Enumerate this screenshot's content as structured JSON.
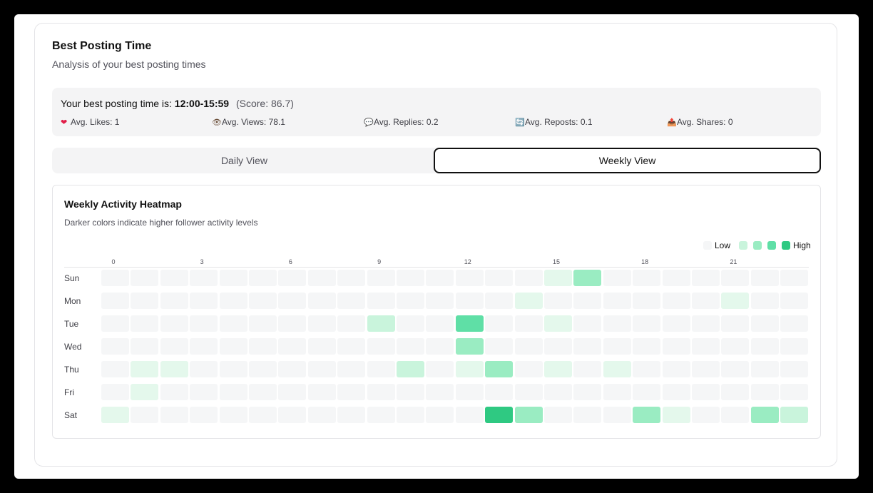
{
  "header": {
    "title": "Best Posting Time",
    "subtitle": "Analysis of your best posting times"
  },
  "best": {
    "prefix": "Your best posting time is:",
    "time": "12:00-15:59",
    "score": "(Score: 86.7)",
    "stats": [
      {
        "icon": "heart-icon",
        "glyph": "❤",
        "color": "#e11d48",
        "label": "Avg. Likes: 1"
      },
      {
        "icon": "eye-icon",
        "glyph": "👁",
        "color": "#6b4f3a",
        "label": "Avg. Views: 78.1"
      },
      {
        "icon": "speech-bubble-icon",
        "glyph": "💬",
        "color": "#94a3b8",
        "label": "Avg. Replies: 0.2"
      },
      {
        "icon": "repost-icon",
        "glyph": "🔄",
        "color": "#2563eb",
        "label": "Avg. Reposts: 0.1"
      },
      {
        "icon": "share-icon",
        "glyph": "📤",
        "color": "#dc2626",
        "label": "Avg. Shares: 0"
      }
    ]
  },
  "tabs": {
    "daily": "Daily View",
    "weekly": "Weekly View",
    "active": "weekly"
  },
  "heatmap": {
    "title": "Weekly Activity Heatmap",
    "subtitle": "Darker colors indicate higher follower activity levels",
    "legend": {
      "low": "Low",
      "high": "High"
    },
    "colors": [
      "#f5f6f7",
      "#e4f8ec",
      "#c9f4dc",
      "#9aecc2",
      "#5fdfa6",
      "#2fc982"
    ],
    "hour_ticks": [
      "0",
      "3",
      "6",
      "9",
      "12",
      "15",
      "18",
      "21"
    ],
    "days": [
      "Sun",
      "Mon",
      "Tue",
      "Wed",
      "Thu",
      "Fri",
      "Sat"
    ],
    "levels": [
      [
        0,
        0,
        0,
        0,
        0,
        0,
        0,
        0,
        0,
        0,
        0,
        0,
        0,
        0,
        0,
        1,
        3,
        0,
        0,
        0,
        0,
        0,
        0,
        0
      ],
      [
        0,
        0,
        0,
        0,
        0,
        0,
        0,
        0,
        0,
        0,
        0,
        0,
        0,
        0,
        1,
        0,
        0,
        0,
        0,
        0,
        0,
        1,
        0,
        0
      ],
      [
        0,
        0,
        0,
        0,
        0,
        0,
        0,
        0,
        0,
        2,
        0,
        0,
        4,
        0,
        0,
        1,
        0,
        0,
        0,
        0,
        0,
        0,
        0,
        0
      ],
      [
        0,
        0,
        0,
        0,
        0,
        0,
        0,
        0,
        0,
        0,
        0,
        0,
        3,
        0,
        0,
        0,
        0,
        0,
        0,
        0,
        0,
        0,
        0,
        0
      ],
      [
        0,
        1,
        1,
        0,
        0,
        0,
        0,
        0,
        0,
        0,
        2,
        0,
        1,
        3,
        0,
        1,
        0,
        1,
        0,
        0,
        0,
        0,
        0,
        0
      ],
      [
        0,
        1,
        0,
        0,
        0,
        0,
        0,
        0,
        0,
        0,
        0,
        0,
        0,
        0,
        0,
        0,
        0,
        0,
        0,
        0,
        0,
        0,
        0,
        0
      ],
      [
        1,
        0,
        0,
        0,
        0,
        0,
        0,
        0,
        0,
        0,
        0,
        0,
        0,
        5,
        3,
        0,
        0,
        0,
        3,
        1,
        0,
        0,
        3,
        2
      ]
    ]
  }
}
